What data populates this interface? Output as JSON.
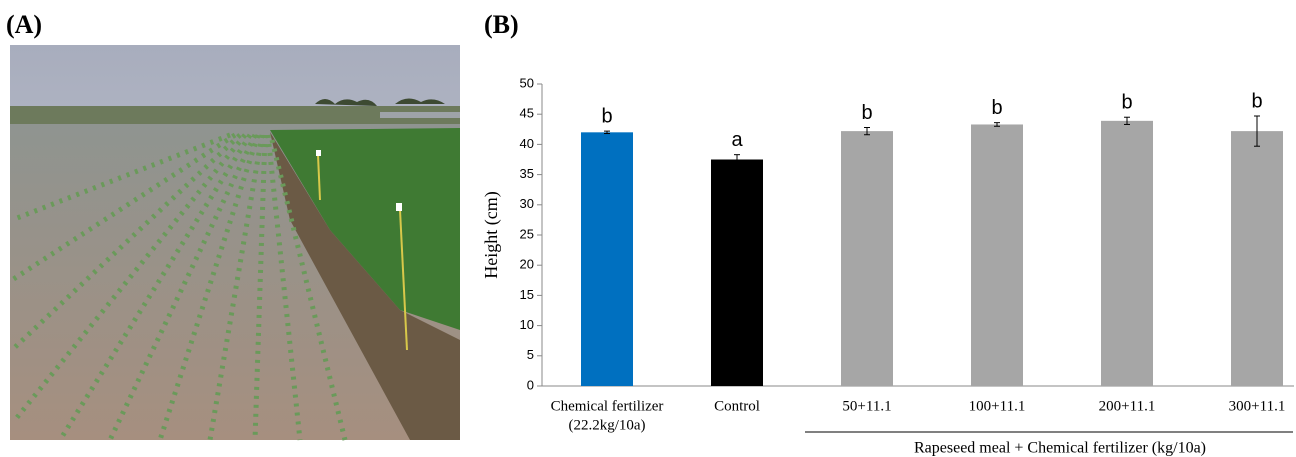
{
  "panel_labels": [
    "(A)",
    "(B)"
  ],
  "chart_data": {
    "type": "bar",
    "y_label": "Height (cm)",
    "categories": [
      "Chemical fertilizer",
      "Control",
      "50+11.1",
      "100+11.1",
      "200+11.1",
      "300+11.1"
    ],
    "category_sublabels": [
      "(22.2kg/10a)",
      null,
      null,
      null,
      null,
      null
    ],
    "group_label": "Rapeseed meal + Chemical fertilizer (kg/10a)",
    "values": [
      42.0,
      37.5,
      42.2,
      43.3,
      43.9,
      42.2
    ],
    "errors": [
      0.2,
      0.8,
      0.6,
      0.3,
      0.6,
      2.5
    ],
    "significance_letters": [
      "b",
      "a",
      "b",
      "b",
      "b",
      "b"
    ],
    "colors": [
      "#0070c0",
      "#000000",
      "#a6a6a6",
      "#a6a6a6",
      "#a6a6a6",
      "#a6a6a6"
    ],
    "ylim": [
      0,
      50
    ],
    "yticks": [
      0,
      5,
      10,
      15,
      20,
      25,
      30,
      35,
      40,
      45,
      50
    ],
    "grid": false
  }
}
